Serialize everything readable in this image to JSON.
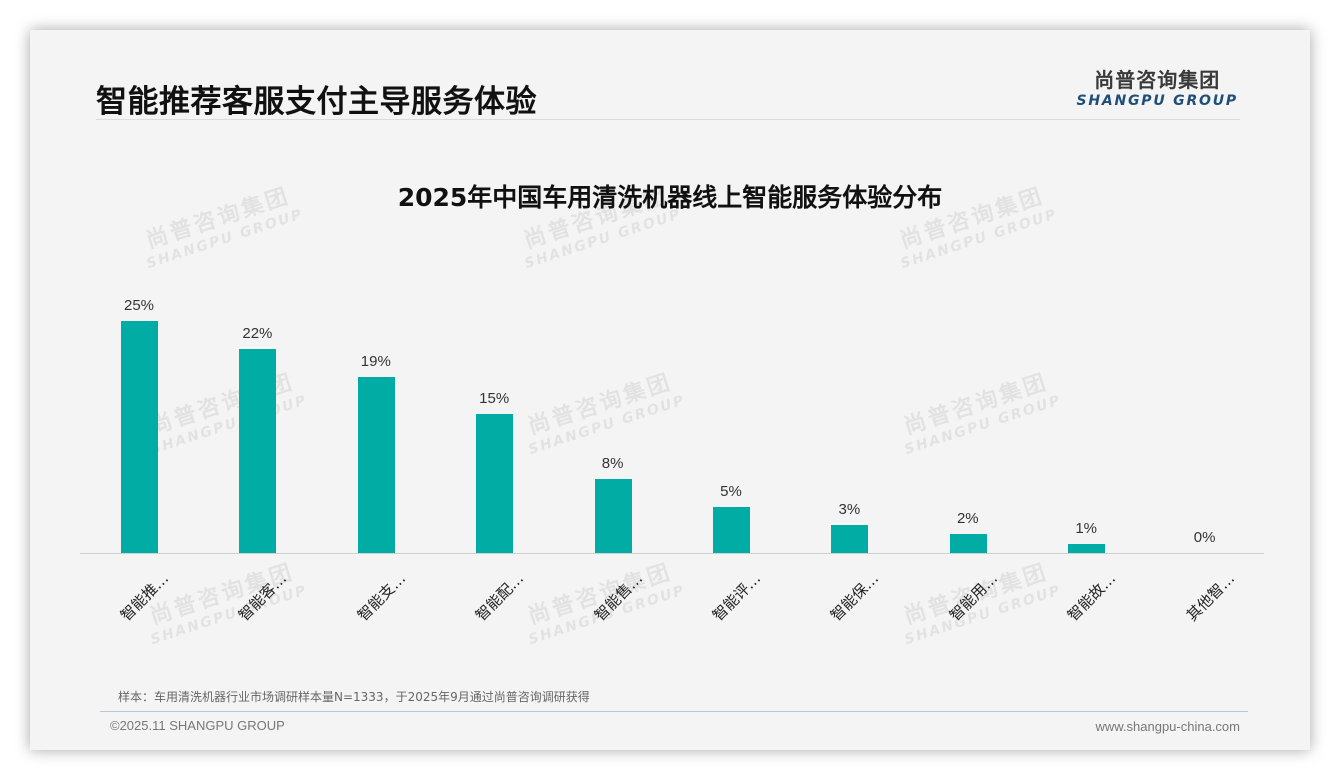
{
  "header": {
    "title": "智能推荐客服支付主导服务体验",
    "logo_cn": "尚普咨询集团",
    "logo_en": "SHANGPU GROUP"
  },
  "watermark": {
    "cn": "尚普咨询集团",
    "en": "SHANGPU GROUP"
  },
  "chart_data": {
    "type": "bar",
    "title": "2025年中国车用清洗机器线上智能服务体验分布",
    "categories": [
      "智能推…",
      "智能客…",
      "智能支…",
      "智能配…",
      "智能售…",
      "智能评…",
      "智能保…",
      "智能用…",
      "智能故…",
      "其他智…"
    ],
    "values": [
      25,
      22,
      19,
      15,
      8,
      5,
      3,
      2,
      1,
      0
    ],
    "value_labels": [
      "25%",
      "22%",
      "19%",
      "15%",
      "8%",
      "5%",
      "3%",
      "2%",
      "1%",
      "0%"
    ],
    "xlabel": "",
    "ylabel": "",
    "ylim": [
      0,
      25
    ],
    "unit": "%",
    "grid": false,
    "legend": null,
    "bar_color": "#00aca4"
  },
  "footer": {
    "note": "样本：车用清洗机器行业市场调研样本量N=1333，于2025年9月通过尚普咨询调研获得",
    "copyright": "©2025.11 SHANGPU GROUP",
    "website": "www.shangpu-china.com"
  }
}
